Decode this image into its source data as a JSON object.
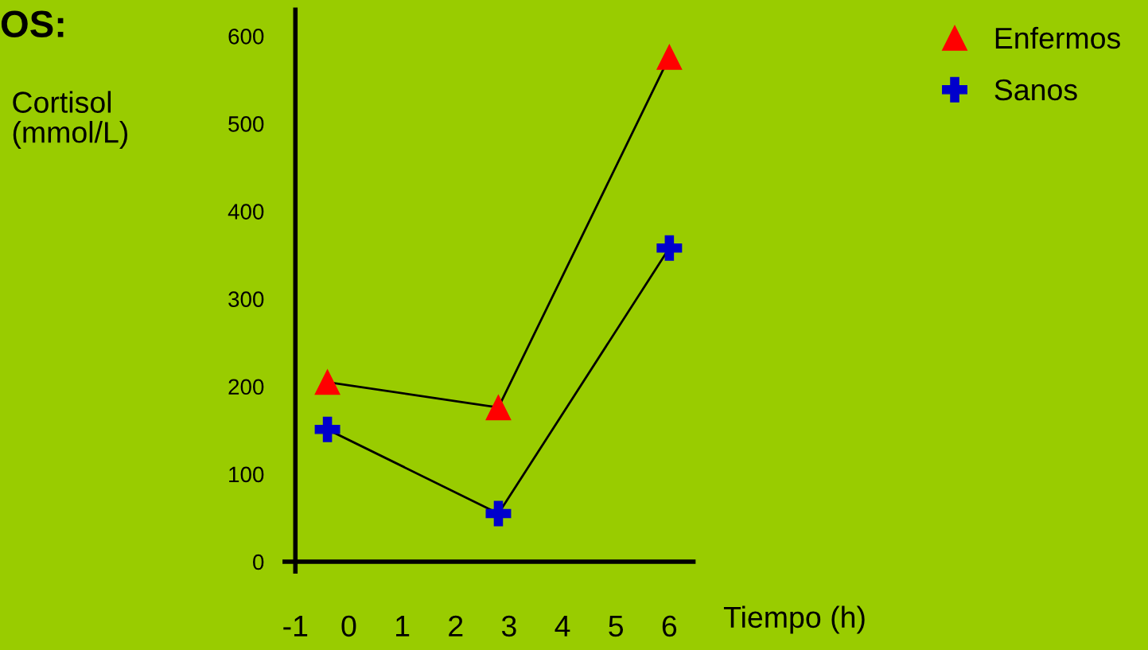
{
  "chart_data": {
    "type": "line",
    "title": "OS:",
    "ylabel": "Cortisol\n(mmol/L)",
    "xlabel": "Tiempo (h)",
    "xlim": [
      -1.2,
      6.45
    ],
    "xticks": [
      -1,
      0,
      1,
      2,
      3,
      4,
      5,
      6
    ],
    "ylim": [
      -11,
      630
    ],
    "yticks": [
      0,
      100,
      200,
      300,
      400,
      500,
      600
    ],
    "grid": false,
    "legend": "top right",
    "series": [
      {
        "name": "Enfermos",
        "color": "#ff0000",
        "marker": "triangle",
        "x": [
          -0.4,
          2.8,
          6
        ],
        "values": [
          205,
          176,
          576
        ]
      },
      {
        "name": "Sanos",
        "color": "#0000cc",
        "marker": "plus",
        "x": [
          -0.4,
          2.8,
          6
        ],
        "values": [
          151,
          55,
          358
        ]
      }
    ]
  }
}
